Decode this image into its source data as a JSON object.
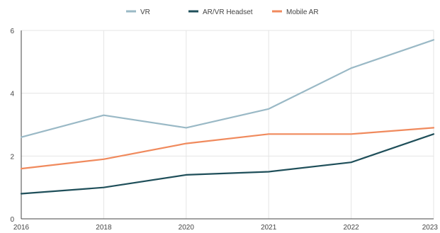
{
  "chart_data": {
    "type": "line",
    "title": "",
    "xlabel": "",
    "ylabel": "",
    "x": [
      2016,
      2018,
      2020,
      2021,
      2022,
      2023
    ],
    "x_tick_labels": [
      "2016",
      "2018",
      "2020",
      "2021",
      "2022",
      "2023"
    ],
    "ylim": [
      0,
      6
    ],
    "y_ticks": [
      0,
      2,
      4,
      6
    ],
    "y_tick_labels": [
      "0",
      "2",
      "4",
      "6"
    ],
    "grid": true,
    "legend_position": "top",
    "series": [
      {
        "name": "VR",
        "color": "#9ab9c6",
        "values": [
          2.6,
          3.3,
          2.9,
          3.5,
          4.8,
          5.7
        ]
      },
      {
        "name": "AR/VR Headset",
        "color": "#1f4f5a",
        "values": [
          0.8,
          1.0,
          1.4,
          1.5,
          1.8,
          2.7
        ]
      },
      {
        "name": "Mobile AR",
        "color": "#f08a5d",
        "values": [
          1.6,
          1.9,
          2.4,
          2.7,
          2.7,
          2.9
        ]
      }
    ]
  }
}
